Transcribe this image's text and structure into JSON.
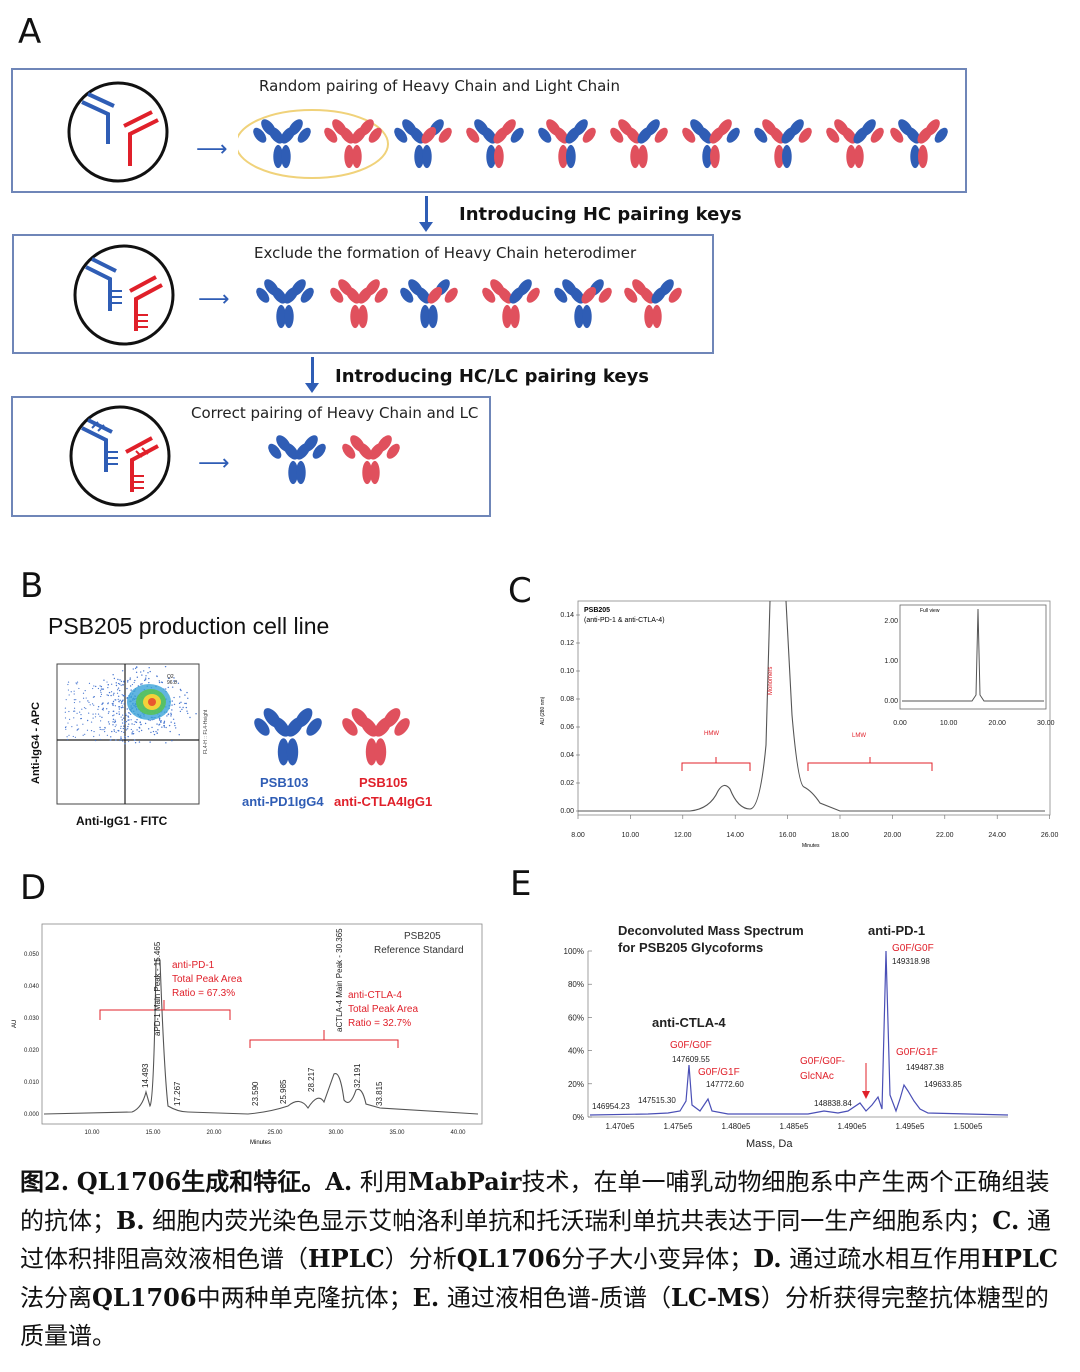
{
  "panelA": {
    "label": "A",
    "row1_title": "Random pairing of  Heavy Chain and Light Chain",
    "arrow1_label": "Introducing HC pairing keys",
    "row2_title": "Exclude the formation of Heavy Chain heterodimer",
    "arrow2_label": "Introducing HC/LC pairing keys",
    "row3_title": "Correct pairing of  Heavy Chain and LC",
    "colors": {
      "blue": "#2f5db5",
      "red": "#e0505d",
      "box_border": "#6f86b8",
      "ellipse": "#f0d27a"
    }
  },
  "panelB": {
    "label": "B",
    "title": "PSB205 production cell line",
    "ylabel": "Anti-IgG4 - APC",
    "xlabel": "Anti-IgG1 - FITC",
    "right_axis_label": "FL4-H :: FL4-Height",
    "gate_label": "Q2",
    "gate_value": "96.8",
    "ab1_name": "PSB103",
    "ab1_desc": "anti-PD1IgG4",
    "ab2_name": "PSB105",
    "ab2_desc": "anti-CTLA4IgG1"
  },
  "panelC": {
    "label": "C",
    "sample": "PSB205",
    "sample_desc": "(anti-PD-1 & anti-CTLA-4)",
    "ylabel": "AU (280 nm)",
    "xlabel": "Minutes",
    "hmw": "HMW",
    "monomers": "Monomers",
    "lmw": "LMW",
    "inset_title": "Full view",
    "y_ticks": [
      "0.14",
      "0.12",
      "0.10",
      "0.08",
      "0.06",
      "0.04",
      "0.02",
      "0.00"
    ],
    "x_ticks": [
      "8.00",
      "10.00",
      "12.00",
      "14.00",
      "16.00",
      "18.00",
      "20.00",
      "22.00",
      "24.00",
      "26.00"
    ],
    "inset_y_ticks": [
      "2.00",
      "1.00",
      "0.00"
    ],
    "inset_x_ticks": [
      "0.00",
      "10.00",
      "20.00",
      "30.00"
    ]
  },
  "panelD": {
    "label": "D",
    "title1": "PSB205",
    "title2": "Reference Standard",
    "ylabel": "AU",
    "xlabel": "Minutes",
    "pd1_name": "anti-PD-1",
    "pd1_area": "Total Peak Area",
    "pd1_ratio": "Ratio = 67.3%",
    "ctla4_name": "anti-CTLA-4",
    "ctla4_area": "Total Peak Area",
    "ctla4_ratio": "Ratio = 32.7%",
    "y_ticks": [
      "0.050",
      "0.040",
      "0.030",
      "0.020",
      "0.010",
      "0.000"
    ],
    "x_ticks": [
      "10.00",
      "15.00",
      "20.00",
      "25.00",
      "30.00",
      "35.00",
      "40.00"
    ],
    "peaks": [
      {
        "label": "14.493"
      },
      {
        "label": "aPD-1 Main Peak - 15.465"
      },
      {
        "label": "17.267"
      },
      {
        "label": "23.590"
      },
      {
        "label": "25.985"
      },
      {
        "label": "28.217"
      },
      {
        "label": "aCTLA-4 Main Peak - 30.365"
      },
      {
        "label": "32.191"
      },
      {
        "label": "33.815"
      }
    ]
  },
  "panelE": {
    "label": "E",
    "title1": "Deconvoluted Mass Spectrum",
    "title2": "for PSB205 Glycoforms",
    "xlabel": "Mass, Da",
    "pd1": "anti-PD-1",
    "ctla4": "anti-CTLA-4",
    "g0f_pd1": "G0F/G0F",
    "m_pd1_main": "149318.98",
    "g0f_g1f_pd1": "G0F/G1F",
    "m_pd1_2": "149487.38",
    "m_pd1_3": "149633.85",
    "g0f_ctla": "G0F/G0F",
    "m_ctla_main": "147609.55",
    "g0f_g1f_ctla": "G0F/G1F",
    "m_ctla_2": "147772.60",
    "glcnac1": "G0F/G0F-",
    "glcnac2": "GlcNAc",
    "m_left1": "146954.23",
    "m_left2": "147515.30",
    "m_mid": "148838.84",
    "y_ticks": [
      "100%",
      "80%",
      "60%",
      "40%",
      "20%",
      "0%"
    ],
    "x_ticks": [
      "1.470e5",
      "1.475e5",
      "1.480e5",
      "1.485e5",
      "1.490e5",
      "1.495e5",
      "1.500e5"
    ]
  },
  "caption": {
    "fig_no": "图2.",
    "title": "QL1706生成和特征。",
    "a": "A.",
    "a_text": "利用",
    "a_bold": "MabPair",
    "a_text2": "技术，在单一哺乳动物细胞系中产生两个正确组装的抗体；",
    "b": "B.",
    "b_text": "细胞内荧光染色显示艾帕洛利单抗和托沃瑞利单抗共表达于同一生产细胞系内；",
    "c": "C.",
    "c_text": "通过体积排阻高效液相色谱（",
    "c_bold": "HPLC",
    "c_text2": "）分析",
    "c_bold2": "QL1706",
    "c_text3": "分子大小变异体；",
    "d": "D.",
    "d_text": "通过疏水相互作用",
    "d_bold": "HPLC",
    "d_text2": "法分离",
    "d_bold2": "QL1706",
    "d_text3": "中两种单克隆抗体；",
    "e": "E.",
    "e_text": "通过液相色谱-质谱（",
    "e_bold": "LC-MS",
    "e_text2": "）分析获得完整抗体糖型的质量谱。"
  }
}
